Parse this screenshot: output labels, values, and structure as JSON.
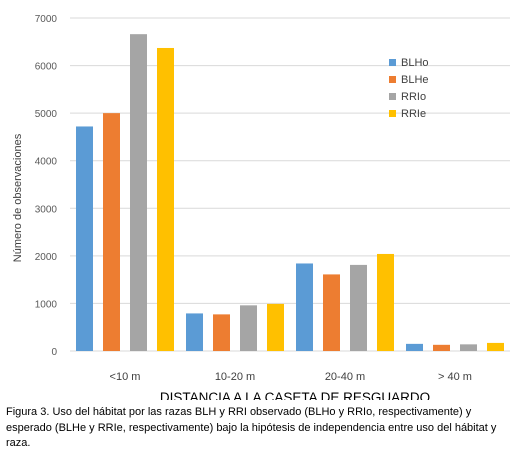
{
  "chart_data": {
    "type": "bar",
    "xlabel": "DISTANCIA A LA CASETA DE RESGUARDO",
    "ylabel": "Número de observaciones",
    "categories": [
      "<10 m",
      "10-20 m",
      "20-40 m",
      "> 40 m"
    ],
    "ylim": [
      0,
      7000
    ],
    "yticks": [
      "0",
      "1000",
      "2000",
      "3000",
      "4000",
      "5000",
      "6000",
      "7000"
    ],
    "grid": true,
    "legend_position": "right",
    "series": [
      {
        "name": "BLHo",
        "color": "#5B9BD5",
        "values": [
          4720,
          790,
          1840,
          150
        ]
      },
      {
        "name": "BLHe",
        "color": "#ED7D31",
        "values": [
          5000,
          770,
          1610,
          130
        ]
      },
      {
        "name": "RRIo",
        "color": "#A5A5A5",
        "values": [
          6660,
          960,
          1810,
          140
        ]
      },
      {
        "name": "RRIe",
        "color": "#FFC000",
        "values": [
          6370,
          990,
          2040,
          170
        ]
      }
    ]
  },
  "caption": "Figura 3. Uso del hábitat por las razas BLH y RRI observado (BLHo y RRIo, respectivamente) y esperado (BLHe y RRIe, respectivamente) bajo la hipótesis de independencia entre uso del hábitat y raza."
}
